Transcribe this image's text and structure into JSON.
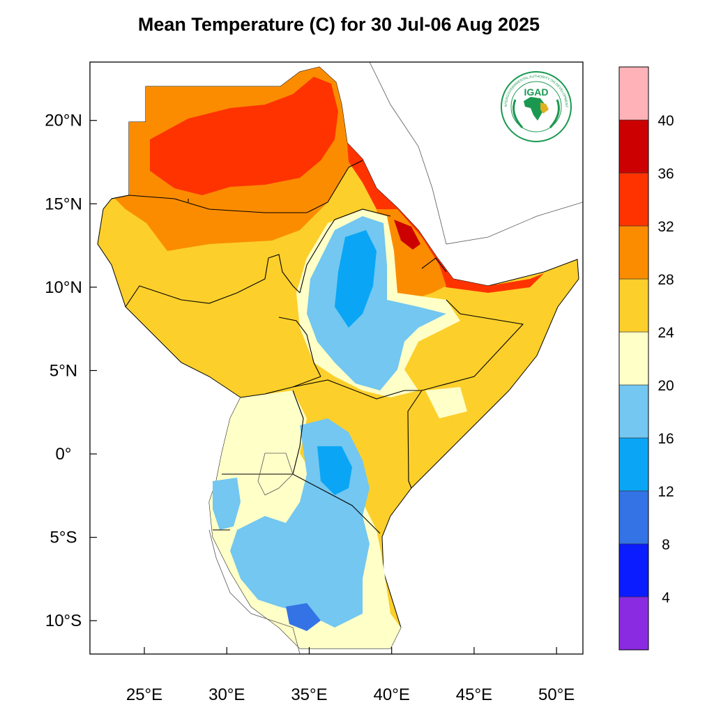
{
  "title": "Mean Temperature (C) for 30 Jul-06 Aug 2025",
  "map": {
    "projection": "lat-lon",
    "lon_range": [
      21.7,
      51.6
    ],
    "lat_range": [
      -12,
      23.5
    ],
    "x_ticks": [
      {
        "value": 25,
        "label": "25°E"
      },
      {
        "value": 30,
        "label": "30°E"
      },
      {
        "value": 35,
        "label": "35°E"
      },
      {
        "value": 40,
        "label": "40°E"
      },
      {
        "value": 45,
        "label": "45°E"
      },
      {
        "value": 50,
        "label": "50°E"
      }
    ],
    "y_ticks": [
      {
        "value": 20,
        "label": "20°N"
      },
      {
        "value": 15,
        "label": "15°N"
      },
      {
        "value": 10,
        "label": "10°N"
      },
      {
        "value": 5,
        "label": "5°N"
      },
      {
        "value": 0,
        "label": "0°"
      },
      {
        "value": -5,
        "label": "5°S"
      },
      {
        "value": -10,
        "label": "10°S"
      }
    ]
  },
  "colorbar": {
    "bins": [
      {
        "color": "#8a2be2"
      },
      {
        "color": "#0b1cff"
      },
      {
        "color": "#3373e6"
      },
      {
        "color": "#0aa6f5"
      },
      {
        "color": "#73c7f0"
      },
      {
        "color": "#ffffc8"
      },
      {
        "color": "#fccf2b"
      },
      {
        "color": "#fb8c00"
      },
      {
        "color": "#ff3300"
      },
      {
        "color": "#cc0000"
      },
      {
        "color": "#ffb3b8"
      }
    ],
    "labels": [
      "4",
      "8",
      "12",
      "16",
      "20",
      "24",
      "28",
      "32",
      "36",
      "40"
    ]
  },
  "logo": {
    "text": "IGAD",
    "arc_text": "INTERGOVERNMENTAL AUTHORITY ON DEVELOPMENT",
    "colors": {
      "green": "#1a9850",
      "gold": "#e0b020"
    }
  },
  "regions": [
    {
      "name": "sahara-hot",
      "color": "#ff3300"
    },
    {
      "name": "sudan-warm",
      "color": "#fb8c00"
    },
    {
      "name": "sahel",
      "color": "#fccf2b"
    },
    {
      "name": "highlands-cool",
      "color": "#ffffc8"
    },
    {
      "name": "highlands-cold",
      "color": "#73c7f0"
    },
    {
      "name": "highlands-colder",
      "color": "#0aa6f5"
    },
    {
      "name": "afar-hot",
      "color": "#cc0000"
    }
  ]
}
